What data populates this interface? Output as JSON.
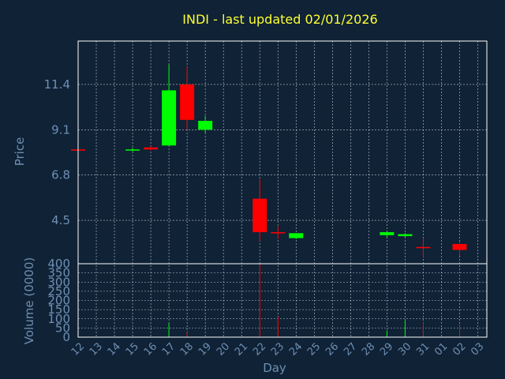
{
  "chart_data": {
    "type": "candlestick",
    "title": "INDI - last updated 02/01/2026",
    "xlabel": "Day",
    "price_panel": {
      "ylabel": "Price",
      "yticks": [
        4.5,
        6.8,
        9.1,
        11.4
      ],
      "ylim": [
        2.3,
        13.6
      ],
      "grid": true
    },
    "volume_panel": {
      "ylabel": "Volume (0000)",
      "yticks": [
        0,
        50,
        100,
        150,
        200,
        250,
        300,
        350,
        400
      ],
      "ylim": [
        0,
        400
      ],
      "grid": true
    },
    "x_ticks": [
      "12",
      "13",
      "14",
      "15",
      "16",
      "17",
      "18",
      "19",
      "20",
      "21",
      "22",
      "23",
      "24",
      "25",
      "26",
      "27",
      "28",
      "29",
      "30",
      "31",
      "01",
      "02",
      "03"
    ],
    "candles": [
      {
        "day": "12",
        "open": 8.1,
        "high": 8.15,
        "low": 8.0,
        "close": 8.05
      },
      {
        "day": "15",
        "open": 8.05,
        "high": 8.2,
        "low": 8.0,
        "close": 8.1
      },
      {
        "day": "16",
        "open": 8.2,
        "high": 8.25,
        "low": 8.05,
        "close": 8.1
      },
      {
        "day": "17",
        "open": 8.3,
        "high": 12.4,
        "low": 8.3,
        "close": 11.1
      },
      {
        "day": "18",
        "open": 11.4,
        "high": 12.3,
        "low": 9.1,
        "close": 9.6
      },
      {
        "day": "19",
        "open": 9.1,
        "high": 9.8,
        "low": 8.95,
        "close": 9.55
      },
      {
        "day": "22",
        "open": 5.6,
        "high": 6.6,
        "low": 3.45,
        "close": 3.9
      },
      {
        "day": "23",
        "open": 3.9,
        "high": 4.2,
        "low": 3.55,
        "close": 3.85
      },
      {
        "day": "24",
        "open": 3.6,
        "high": 3.85,
        "low": 3.55,
        "close": 3.85
      },
      {
        "day": "29",
        "open": 3.75,
        "high": 3.95,
        "low": 3.65,
        "close": 3.9
      },
      {
        "day": "30",
        "open": 3.7,
        "high": 3.85,
        "low": 3.65,
        "close": 3.8
      },
      {
        "day": "31",
        "open": 3.15,
        "high": 3.6,
        "low": 2.6,
        "close": 3.1
      },
      {
        "day": "02",
        "open": 3.3,
        "high": 3.4,
        "low": 2.7,
        "close": 3.0
      }
    ],
    "volumes": [
      {
        "day": "12",
        "value": 0
      },
      {
        "day": "15",
        "value": 0
      },
      {
        "day": "16",
        "value": 0
      },
      {
        "day": "17",
        "value": 75
      },
      {
        "day": "18",
        "value": 25
      },
      {
        "day": "19",
        "value": 0
      },
      {
        "day": "22",
        "value": 400
      },
      {
        "day": "23",
        "value": 110
      },
      {
        "day": "24",
        "value": 0
      },
      {
        "day": "29",
        "value": 35
      },
      {
        "day": "30",
        "value": 90
      },
      {
        "day": "31",
        "value": 80
      },
      {
        "day": "02",
        "value": 70
      }
    ],
    "colors": {
      "background": "#0f2236",
      "up": "#00ff00",
      "down": "#ff0000",
      "text": "#6f8fb3",
      "title": "#ffff33",
      "frame": "#ffffff",
      "grid": "#ffffff"
    }
  }
}
